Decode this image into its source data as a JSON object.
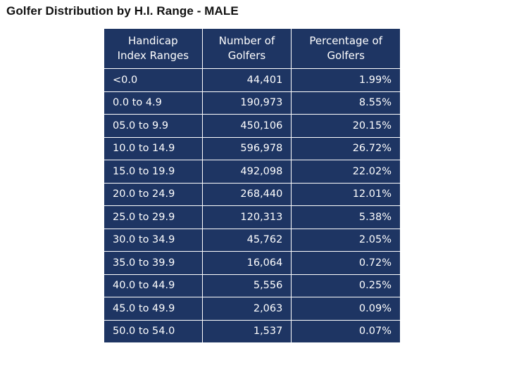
{
  "chart_data": {
    "type": "table",
    "title": "Golfer Distribution by H.I. Range - MALE",
    "columns": [
      "Handicap Index Ranges",
      "Number of Golfers",
      "Percentage of Golfers"
    ],
    "header_lines": [
      [
        "Handicap",
        "Index Ranges"
      ],
      [
        "Number of",
        "Golfers"
      ],
      [
        "Percentage of",
        "Golfers"
      ]
    ],
    "rows": [
      [
        "<0.0",
        "44,401",
        "1.99%"
      ],
      [
        "0.0 to 4.9",
        "190,973",
        "8.55%"
      ],
      [
        "05.0 to 9.9",
        "450,106",
        "20.15%"
      ],
      [
        "10.0 to 14.9",
        "596,978",
        "26.72%"
      ],
      [
        "15.0 to 19.9",
        "492,098",
        "22.02%"
      ],
      [
        "20.0 to 24.9",
        "268,440",
        "12.01%"
      ],
      [
        "25.0 to 29.9",
        "120,313",
        "5.38%"
      ],
      [
        "30.0 to 34.9",
        "45,762",
        "2.05%"
      ],
      [
        "35.0 to 39.9",
        "16,064",
        "0.72%"
      ],
      [
        "40.0 to 44.9",
        "5,556",
        "0.25%"
      ],
      [
        "45.0 to 49.9",
        "2,063",
        "0.09%"
      ],
      [
        "50.0 to 54.0",
        "1,537",
        "0.07%"
      ]
    ],
    "colors": {
      "table_bg": "#1e3563",
      "text": "#ffffff",
      "grid": "#ffffff",
      "title": "#111111"
    }
  }
}
